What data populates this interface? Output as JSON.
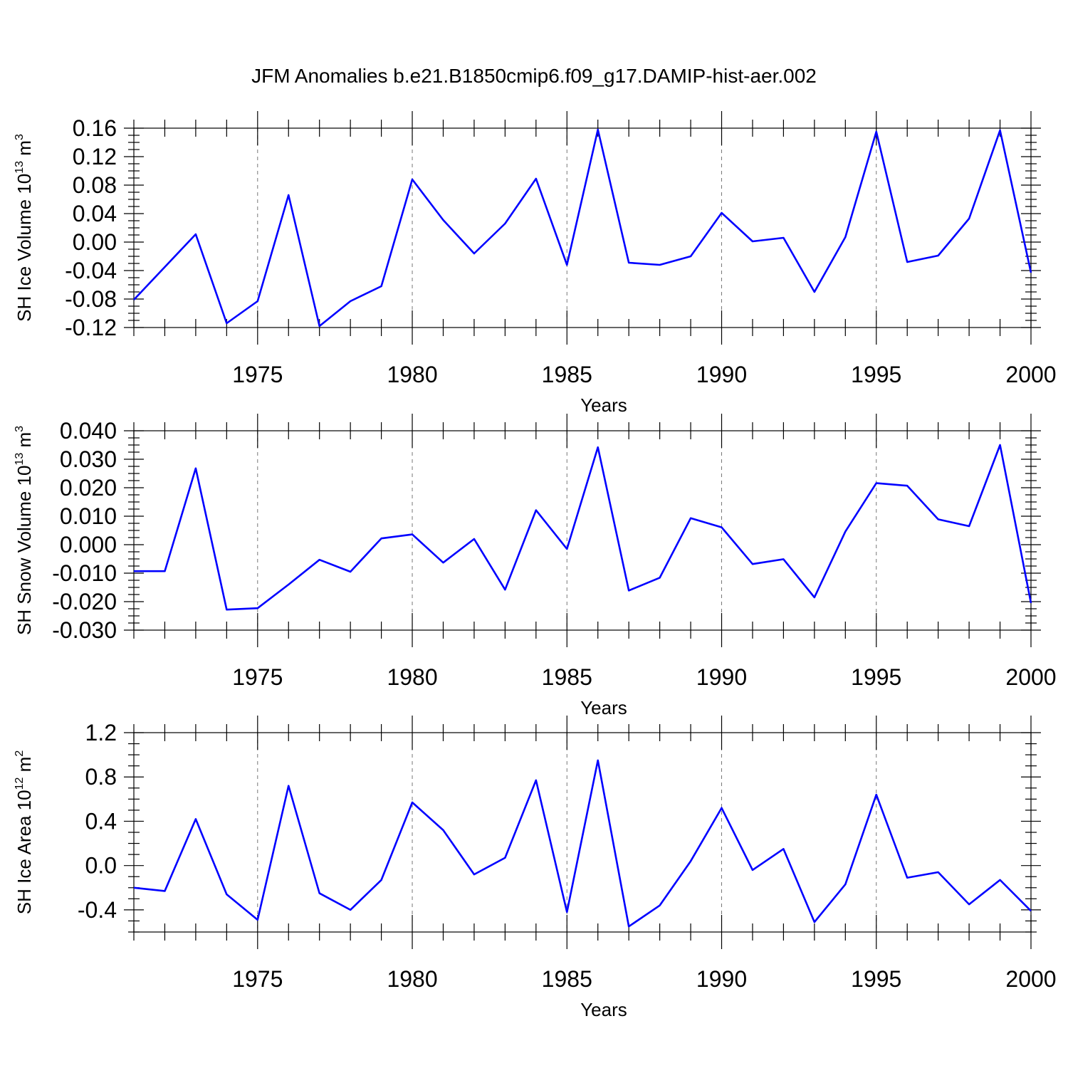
{
  "colors": {
    "line": "#0000ff",
    "axis": "#000000",
    "grid": "#777777"
  },
  "chart_data": {
    "type": "line",
    "title": "JFM Anomalies b.e21.B1850cmip6.f09_g17.DAMIP-hist-aer.002",
    "x": [
      1971,
      1972,
      1973,
      1974,
      1975,
      1976,
      1977,
      1978,
      1979,
      1980,
      1981,
      1982,
      1983,
      1984,
      1985,
      1986,
      1987,
      1988,
      1989,
      1990,
      1991,
      1992,
      1993,
      1994,
      1995,
      1996,
      1997,
      1998,
      1999,
      2000
    ],
    "xlim": [
      1971,
      2000
    ],
    "xticks": [
      1975,
      1980,
      1985,
      1990,
      1995,
      2000
    ],
    "xtick_labels": [
      "1975",
      "1980",
      "1985",
      "1990",
      "1995",
      "2000"
    ],
    "xgrid": [
      1975,
      1980,
      1985,
      1990,
      1995
    ],
    "panels": [
      {
        "xlabel": "Years",
        "ylabel_prefix": "SH Ice Volume 10",
        "ylabel_exp": "13",
        "ylabel_unit": " m",
        "ylabel_unit_exp": "3",
        "ylim": [
          -0.12,
          0.16
        ],
        "yticks": [
          -0.12,
          -0.08,
          -0.04,
          0.0,
          0.04,
          0.08,
          0.12,
          0.16
        ],
        "ytick_labels": [
          "-0.12",
          "-0.08",
          "-0.04",
          "0.00",
          "0.04",
          "0.08",
          "0.12",
          "0.16"
        ],
        "series": [
          {
            "name": "SH Ice Volume",
            "values": [
              -0.081,
              -0.035,
              0.011,
              -0.114,
              -0.083,
              0.066,
              -0.118,
              -0.083,
              -0.062,
              0.088,
              0.031,
              -0.016,
              0.026,
              0.089,
              -0.032,
              0.158,
              -0.029,
              -0.032,
              -0.02,
              0.041,
              0.001,
              0.006,
              -0.07,
              0.007,
              0.155,
              -0.028,
              -0.019,
              0.033,
              0.157,
              -0.043
            ]
          }
        ]
      },
      {
        "xlabel": "Years",
        "ylabel_prefix": "SH Snow Volume 10",
        "ylabel_exp": "13",
        "ylabel_unit": " m",
        "ylabel_unit_exp": "3",
        "ylim": [
          -0.03,
          0.04
        ],
        "yticks": [
          -0.03,
          -0.02,
          -0.01,
          0.0,
          0.01,
          0.02,
          0.03,
          0.04
        ],
        "ytick_labels": [
          "-0.030",
          "-0.020",
          "-0.010",
          "0.000",
          "0.010",
          "0.020",
          "0.030",
          "0.040"
        ],
        "series": [
          {
            "name": "SH Snow Volume",
            "values": [
              -0.0093,
              -0.0093,
              0.0268,
              -0.0228,
              -0.0223,
              -0.014,
              -0.0053,
              -0.0095,
              0.0022,
              0.0036,
              -0.0063,
              0.002,
              -0.0158,
              0.0121,
              -0.0015,
              0.0342,
              -0.0161,
              -0.0116,
              0.0093,
              0.0061,
              -0.0068,
              -0.0051,
              -0.0185,
              0.0046,
              0.0216,
              0.0207,
              0.0089,
              0.0065,
              0.035,
              -0.0205
            ]
          }
        ]
      },
      {
        "xlabel": "Years",
        "ylabel_prefix": "SH Ice Area 10",
        "ylabel_exp": "12",
        "ylabel_unit": " m",
        "ylabel_unit_exp": "2",
        "ylim": [
          -0.6,
          1.2
        ],
        "yticks": [
          -0.4,
          0.0,
          0.4,
          0.8,
          1.2
        ],
        "ytick_labels": [
          "-0.4",
          "0.0",
          "0.4",
          "0.8",
          "1.2"
        ],
        "series": [
          {
            "name": "SH Ice Area",
            "values": [
              -0.2,
              -0.23,
              0.42,
              -0.26,
              -0.49,
              0.72,
              -0.25,
              -0.4,
              -0.13,
              0.57,
              0.32,
              -0.08,
              0.07,
              0.77,
              -0.42,
              0.95,
              -0.55,
              -0.36,
              0.04,
              0.52,
              -0.04,
              0.15,
              -0.51,
              -0.17,
              0.64,
              -0.11,
              -0.06,
              -0.35,
              -0.13,
              -0.41
            ]
          }
        ]
      }
    ]
  }
}
